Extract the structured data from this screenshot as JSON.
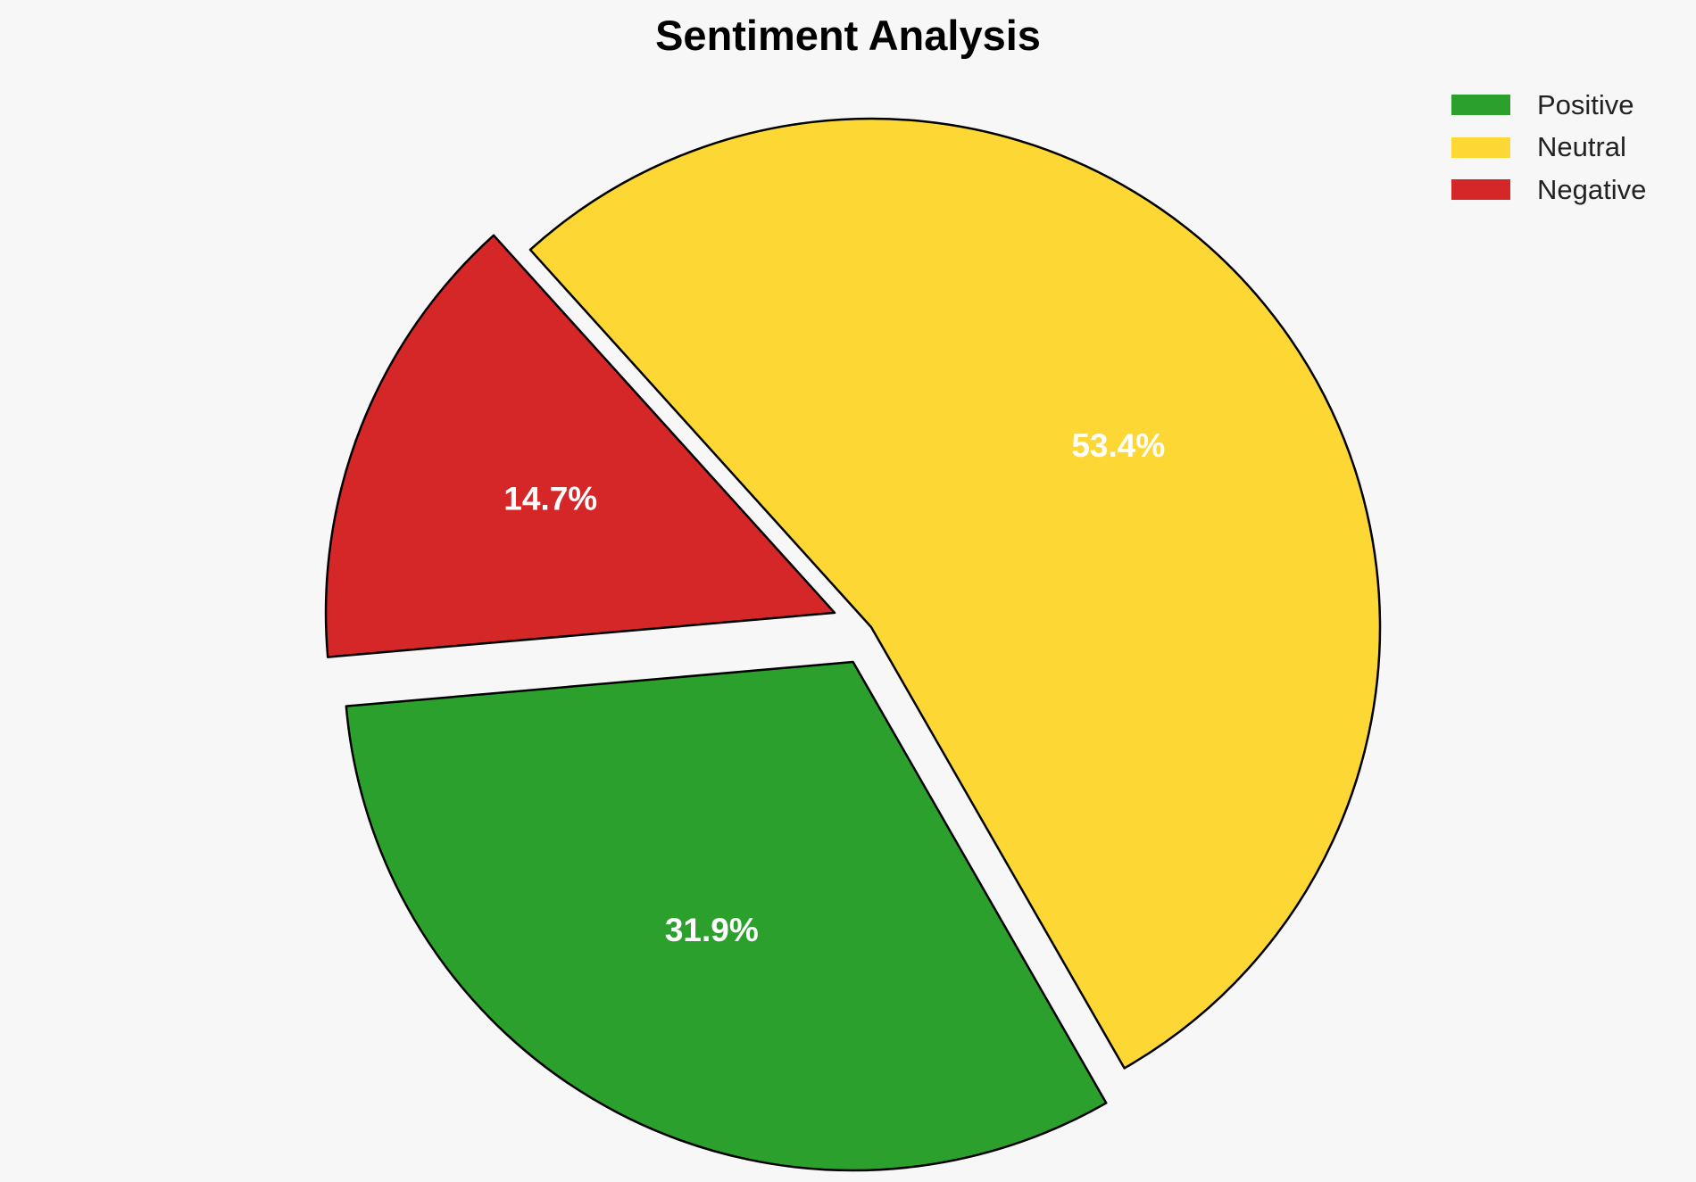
{
  "chart_data": {
    "type": "pie",
    "title": "Sentiment Analysis",
    "categories": [
      "Positive",
      "Neutral",
      "Negative"
    ],
    "values": [
      31.9,
      53.4,
      14.7
    ],
    "labels": [
      "31.9%",
      "53.4%",
      "14.7%"
    ],
    "colors": [
      "#2ca02c",
      "#fdd835",
      "#d62728"
    ],
    "exploded": [
      true,
      false,
      true
    ],
    "legend_position": "top-right",
    "slice_edge_color": "#000000",
    "label_color": "#ffffff"
  }
}
